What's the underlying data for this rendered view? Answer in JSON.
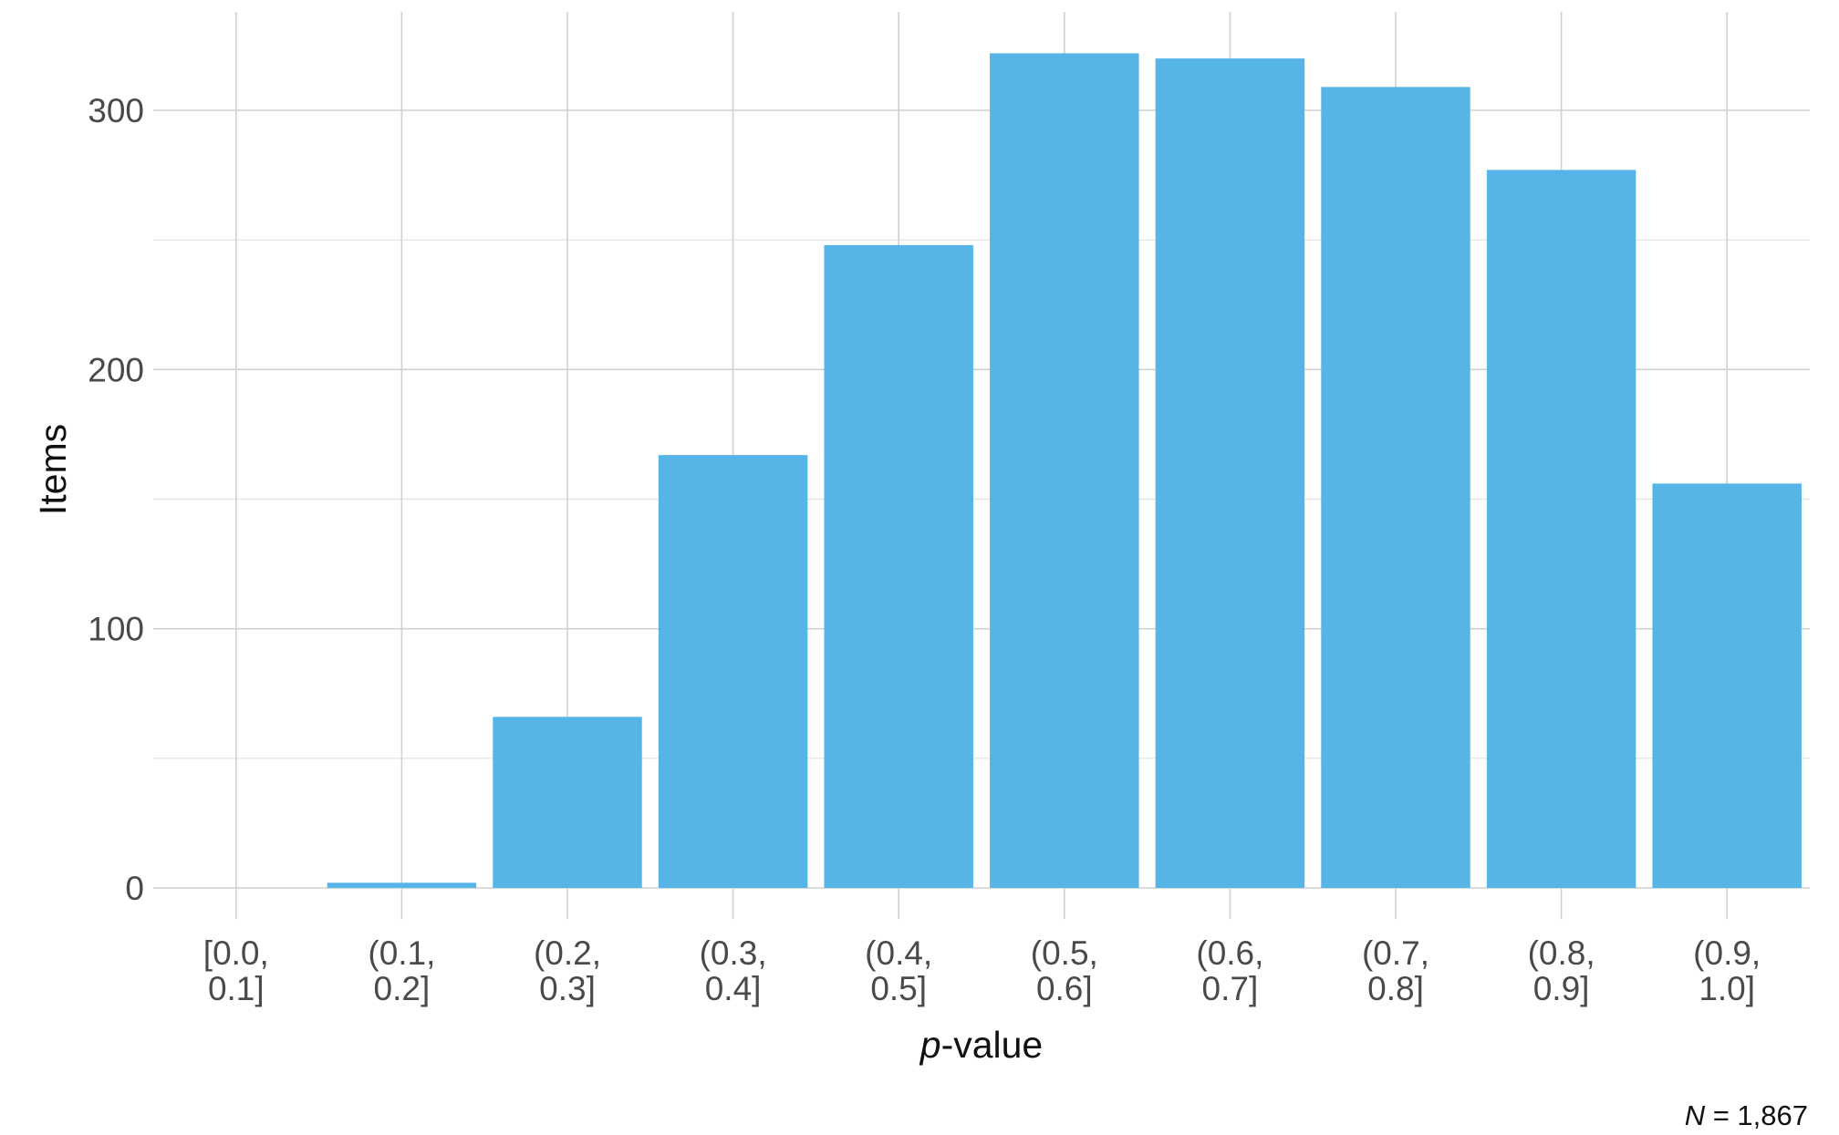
{
  "chart_data": {
    "type": "bar",
    "categories": [
      [
        "[0.0,",
        "0.1]"
      ],
      [
        "(0.1,",
        "0.2]"
      ],
      [
        "(0.2,",
        "0.3]"
      ],
      [
        "(0.3,",
        "0.4]"
      ],
      [
        "(0.4,",
        "0.5]"
      ],
      [
        "(0.5,",
        "0.6]"
      ],
      [
        "(0.6,",
        "0.7]"
      ],
      [
        "(0.7,",
        "0.8]"
      ],
      [
        "(0.8,",
        "0.9]"
      ],
      [
        "(0.9,",
        "1.0]"
      ]
    ],
    "values": [
      0,
      2,
      66,
      167,
      248,
      322,
      320,
      309,
      277,
      156
    ],
    "xlabel_italic": "p",
    "xlabel_rest": "-value",
    "ylabel": "Items",
    "ylim": [
      -12,
      338
    ],
    "yticks": [
      0,
      100,
      200,
      300
    ],
    "yticks_minor": [
      50,
      150,
      250
    ],
    "grid": true,
    "bar_color": "#56b4e6",
    "caption_italic": "N",
    "caption_rest": " = 1,867"
  }
}
